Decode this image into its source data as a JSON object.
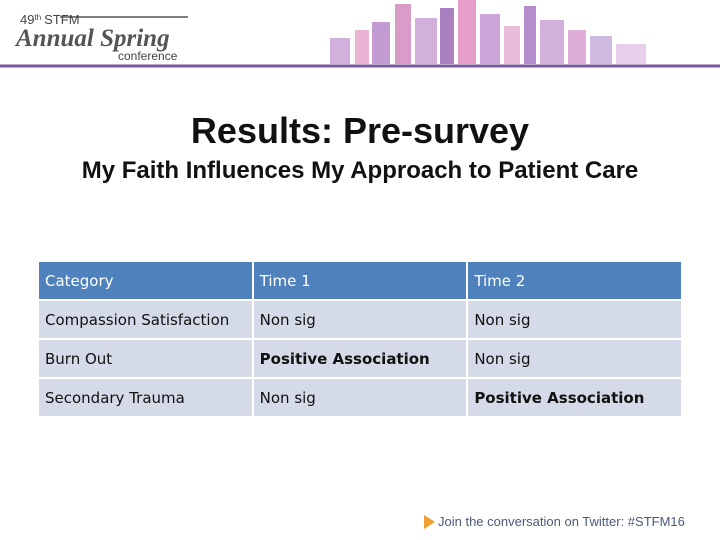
{
  "header": {
    "logo": {
      "edition": "49",
      "suffix": "th",
      "org": "STFM",
      "name": "Annual Spring",
      "event": "conference"
    }
  },
  "title": "Results: Pre-survey",
  "subtitle": "My Faith Influences My Approach to Patient Care",
  "table": {
    "columns": [
      "Category",
      "Time 1",
      "Time 2"
    ],
    "rows": [
      [
        "Compassion Satisfaction",
        "Non sig",
        "Non sig"
      ],
      [
        "Burn Out",
        "Positive Association",
        "Non sig"
      ],
      [
        "Secondary Trauma",
        "Non sig",
        "Positive Association"
      ]
    ]
  },
  "footer": {
    "text": "Join the conversation on Twitter: #STFM16"
  }
}
